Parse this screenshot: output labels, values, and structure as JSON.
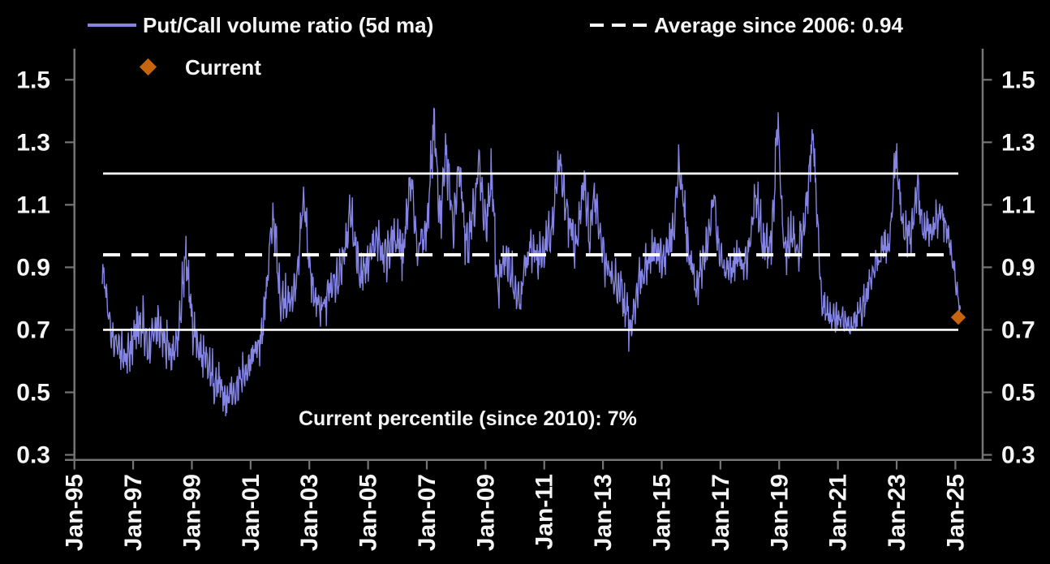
{
  "legend": {
    "series_label": "Put/Call volume ratio (5d ma)",
    "average_label": "Average since 2006: 0.94",
    "current_label": "Current"
  },
  "annotation": {
    "text": "Current percentile (since 2010): 7%"
  },
  "colors": {
    "background": "#000000",
    "series": "#8484e4",
    "current_marker": "#c6640f",
    "reference_line": "#ffffff",
    "axis": "#757575",
    "label": "#f5f5f5"
  },
  "chart_data": {
    "type": "line",
    "title": "",
    "legend_position": "top",
    "grid": false,
    "x_axis": {
      "tick_labels": [
        "Jan-95",
        "Jan-97",
        "Jan-99",
        "Jan-01",
        "Jan-03",
        "Jan-05",
        "Jan-07",
        "Jan-09",
        "Jan-11",
        "Jan-13",
        "Jan-15",
        "Jan-17",
        "Jan-19",
        "Jan-21",
        "Jan-23",
        "Jan-25"
      ],
      "tick_years": [
        1995,
        1997,
        1999,
        2001,
        2003,
        2005,
        2007,
        2009,
        2011,
        2013,
        2015,
        2017,
        2019,
        2021,
        2023,
        2025
      ],
      "range_years": [
        1995,
        2025.95
      ]
    },
    "y_axis": {
      "tick_labels": [
        "1.5",
        "1.3",
        "1.1",
        "0.9",
        "0.7",
        "0.5",
        "0.3"
      ],
      "tick_values": [
        1.5,
        1.3,
        1.1,
        0.9,
        0.7,
        0.5,
        0.3
      ],
      "range": [
        0.285,
        1.6
      ],
      "sides": "both"
    },
    "series": [
      {
        "name": "Put/Call volume ratio (5d ma)",
        "color": "#8484e4",
        "x_start": 1995.95,
        "x_end": 2025.17,
        "end_value": 0.765,
        "value_min": 0.41,
        "value_max": 1.465,
        "anchors": [
          [
            1995.95,
            0.9
          ],
          [
            1996.1,
            0.8
          ],
          [
            1996.3,
            0.65
          ],
          [
            1996.5,
            0.66
          ],
          [
            1996.7,
            0.6
          ],
          [
            1996.9,
            0.63
          ],
          [
            1997.1,
            0.7
          ],
          [
            1997.35,
            0.72
          ],
          [
            1997.5,
            0.63
          ],
          [
            1997.8,
            0.72
          ],
          [
            1998.0,
            0.66
          ],
          [
            1998.3,
            0.62
          ],
          [
            1998.55,
            0.7
          ],
          [
            1998.8,
            0.96
          ],
          [
            1999.0,
            0.72
          ],
          [
            1999.3,
            0.62
          ],
          [
            1999.6,
            0.57
          ],
          [
            1999.9,
            0.52
          ],
          [
            2000.2,
            0.47
          ],
          [
            2000.5,
            0.52
          ],
          [
            2000.8,
            0.57
          ],
          [
            2001.1,
            0.62
          ],
          [
            2001.4,
            0.68
          ],
          [
            2001.77,
            1.08
          ],
          [
            2002.0,
            0.8
          ],
          [
            2002.3,
            0.78
          ],
          [
            2002.6,
            0.86
          ],
          [
            2002.8,
            1.13
          ],
          [
            2003.1,
            0.82
          ],
          [
            2003.4,
            0.76
          ],
          [
            2003.7,
            0.82
          ],
          [
            2004.0,
            0.86
          ],
          [
            2004.4,
            1.08
          ],
          [
            2004.7,
            0.88
          ],
          [
            2005.0,
            0.92
          ],
          [
            2005.3,
            0.98
          ],
          [
            2005.6,
            0.94
          ],
          [
            2005.9,
            1.0
          ],
          [
            2006.2,
            0.94
          ],
          [
            2006.45,
            1.18
          ],
          [
            2006.7,
            0.95
          ],
          [
            2007.0,
            1.03
          ],
          [
            2007.25,
            1.37
          ],
          [
            2007.45,
            1.05
          ],
          [
            2007.65,
            1.27
          ],
          [
            2007.9,
            1.02
          ],
          [
            2008.1,
            1.22
          ],
          [
            2008.35,
            0.96
          ],
          [
            2008.6,
            1.06
          ],
          [
            2008.77,
            1.23
          ],
          [
            2009.0,
            1.02
          ],
          [
            2009.2,
            1.2
          ],
          [
            2009.4,
            0.84
          ],
          [
            2009.7,
            0.93
          ],
          [
            2009.9,
            0.88
          ],
          [
            2010.15,
            0.8
          ],
          [
            2010.5,
            0.97
          ],
          [
            2010.8,
            0.92
          ],
          [
            2011.0,
            0.96
          ],
          [
            2011.25,
            1.02
          ],
          [
            2011.5,
            1.24
          ],
          [
            2011.8,
            1.05
          ],
          [
            2012.1,
            0.96
          ],
          [
            2012.35,
            1.2
          ],
          [
            2012.55,
            0.98
          ],
          [
            2012.7,
            1.16
          ],
          [
            2013.0,
            0.95
          ],
          [
            2013.3,
            0.86
          ],
          [
            2013.6,
            0.82
          ],
          [
            2013.95,
            0.7
          ],
          [
            2014.2,
            0.86
          ],
          [
            2014.5,
            0.92
          ],
          [
            2014.8,
            0.96
          ],
          [
            2015.1,
            0.92
          ],
          [
            2015.4,
            1.02
          ],
          [
            2015.6,
            1.24
          ],
          [
            2015.9,
            0.95
          ],
          [
            2016.2,
            0.84
          ],
          [
            2016.5,
            0.95
          ],
          [
            2016.8,
            1.12
          ],
          [
            2017.0,
            0.92
          ],
          [
            2017.3,
            0.88
          ],
          [
            2017.6,
            0.93
          ],
          [
            2017.9,
            0.9
          ],
          [
            2018.2,
            1.14
          ],
          [
            2018.5,
            0.95
          ],
          [
            2018.75,
            1.0
          ],
          [
            2018.95,
            1.38
          ],
          [
            2019.15,
            0.95
          ],
          [
            2019.4,
            1.0
          ],
          [
            2019.65,
            0.95
          ],
          [
            2019.9,
            1.05
          ],
          [
            2020.15,
            1.33
          ],
          [
            2020.45,
            0.78
          ],
          [
            2020.8,
            0.74
          ],
          [
            2021.1,
            0.73
          ],
          [
            2021.45,
            0.71
          ],
          [
            2021.8,
            0.76
          ],
          [
            2022.2,
            0.88
          ],
          [
            2022.5,
            0.95
          ],
          [
            2022.75,
            0.98
          ],
          [
            2022.97,
            1.26
          ],
          [
            2023.2,
            1.02
          ],
          [
            2023.5,
            1.0
          ],
          [
            2023.7,
            1.16
          ],
          [
            2023.9,
            1.02
          ],
          [
            2024.2,
            1.02
          ],
          [
            2024.5,
            1.08
          ],
          [
            2024.7,
            1.02
          ],
          [
            2024.9,
            0.92
          ],
          [
            2025.05,
            0.82
          ],
          [
            2025.17,
            0.765
          ]
        ],
        "spread_anchors": [
          [
            1995.95,
            0.05
          ],
          [
            1997,
            0.075
          ],
          [
            2000,
            0.07
          ],
          [
            2002,
            0.07
          ],
          [
            2004,
            0.07
          ],
          [
            2006,
            0.075
          ],
          [
            2008,
            0.085
          ],
          [
            2010,
            0.075
          ],
          [
            2013,
            0.075
          ],
          [
            2016,
            0.07
          ],
          [
            2018,
            0.07
          ],
          [
            2019.5,
            0.08
          ],
          [
            2020.6,
            0.05
          ],
          [
            2021.5,
            0.045
          ],
          [
            2022.5,
            0.055
          ],
          [
            2023.5,
            0.06
          ],
          [
            2024.6,
            0.055
          ],
          [
            2025.0,
            0.035
          ],
          [
            2025.17,
            0.02
          ]
        ]
      }
    ],
    "reference_lines": [
      {
        "name": "average-since-2006",
        "value": 0.94,
        "style": "dashed",
        "color": "#ffffff",
        "label": "Average since 2006: 0.94"
      },
      {
        "name": "upper-band",
        "value": 1.2,
        "style": "solid",
        "color": "#ffffff"
      },
      {
        "name": "lower-band",
        "value": 0.7,
        "style": "solid",
        "color": "#ffffff"
      }
    ],
    "current_point": {
      "label": "Current",
      "year": 2025.1,
      "value": 0.74,
      "color": "#c6640f",
      "marker": "diamond"
    },
    "annotations": [
      {
        "text": "Current percentile (since 2010): 7%"
      }
    ]
  }
}
